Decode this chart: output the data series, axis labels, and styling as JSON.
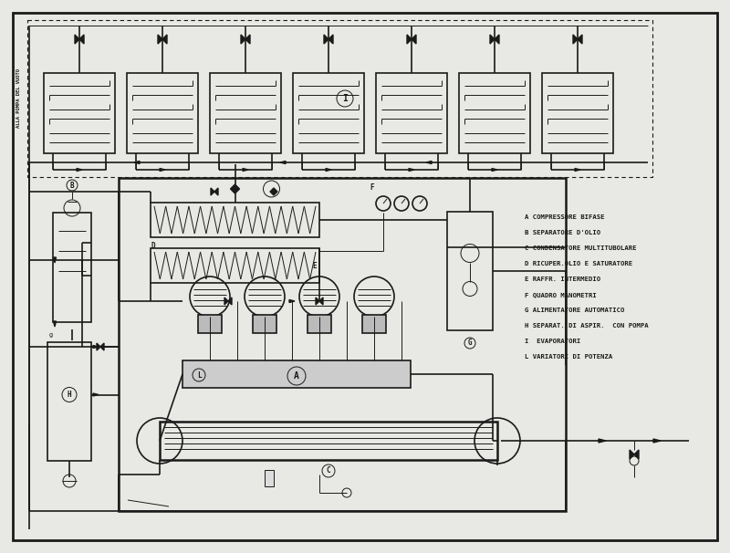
{
  "bg_color": "#b0b0b0",
  "paper_color": "#e8e8e4",
  "line_color": "#1a1a1a",
  "legend": [
    "A COMPRESSORE BIFASE",
    "B SEPARATORE D'OLIO",
    "C CONDENSATORE MULTITUBOLARE",
    "D RICUPER.OLIO E SATURATORE",
    "E RAFFR. INTERMEDIO",
    "F QUADRO MANOMETRI",
    "G ALIMENTATORE AUTOMATICO",
    "H SEPARAT. DI ASPIR.  CON POMPA",
    "I  EVAPORATORI",
    "L VARIATORI DI POTENZA"
  ],
  "vertical_label": "ALLA POMPA DEL VUOTO",
  "figsize": [
    8.0,
    6.06
  ],
  "dpi": 100
}
